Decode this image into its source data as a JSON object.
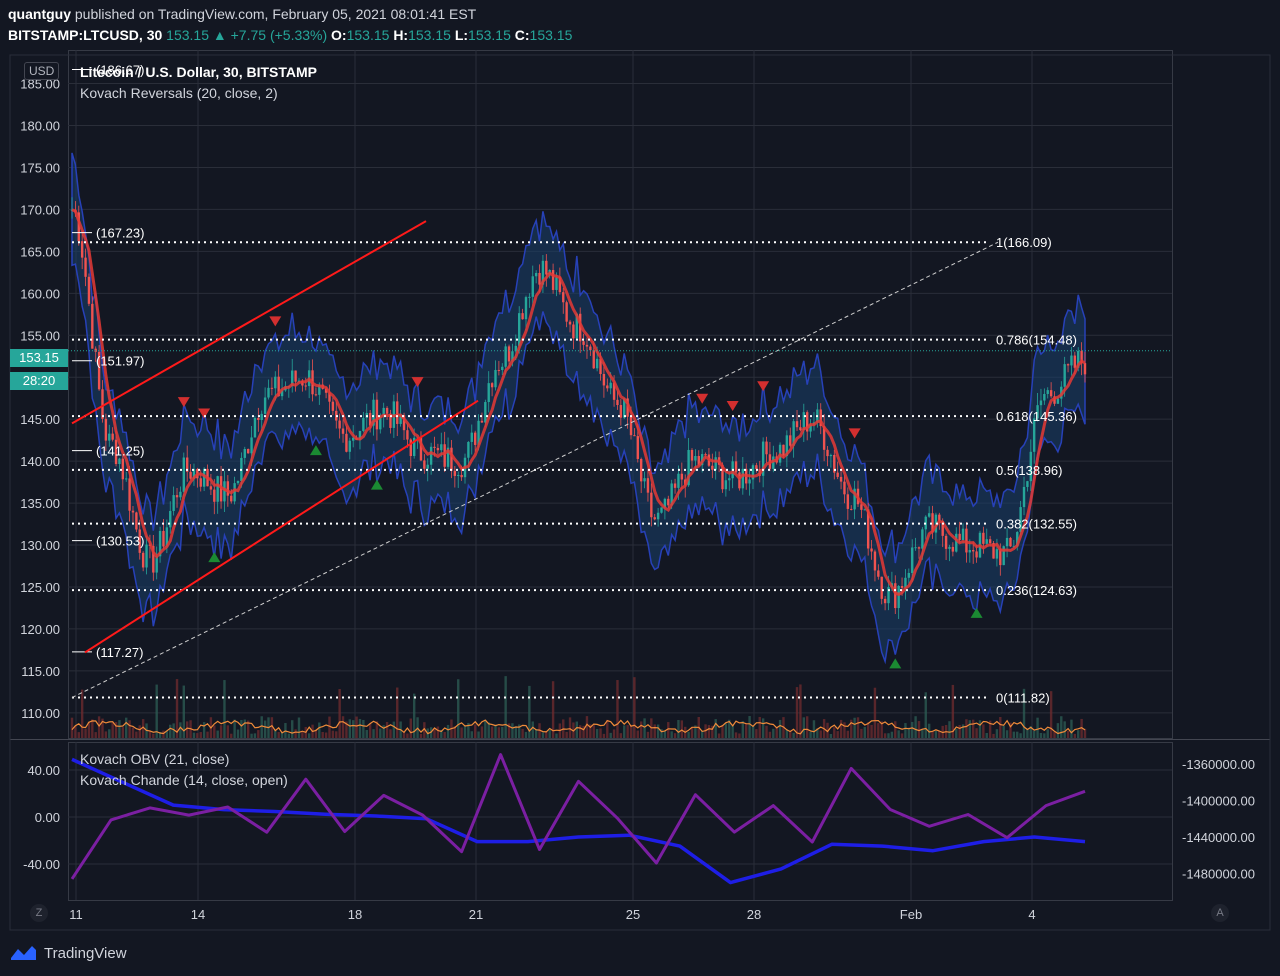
{
  "header": {
    "author": "quantguy",
    "published_text": "published on TradingView.com, February 05, 2021 08:01:41 EST",
    "symbol": "BITSTAMP:LTCUSD, 30",
    "last": "153.15",
    "change": "+7.75 (+5.33%)",
    "o_label": "O:",
    "o": "153.15",
    "h_label": "H:",
    "h": "153.15",
    "l_label": "L:",
    "l": "153.15",
    "c_label": "C:",
    "c": "153.15"
  },
  "main_pane": {
    "title": "Litecoin / U.S. Dollar, 30, BITSTAMP",
    "indicator": "Kovach Reversals (20, close, 2)",
    "currency_button": "USD",
    "price_badge": "153.15",
    "countdown_badge": "28:20"
  },
  "lower_pane": {
    "indicator1": "Kovach OBV (21, close)",
    "indicator2": "Kovach Chande (14, close, open)"
  },
  "footer": {
    "brand": "TradingView",
    "z_button": "Z",
    "a_button": "A"
  },
  "colors": {
    "background": "#131722",
    "grid": "#2a2e39",
    "candle_up": "#26a69a",
    "candle_down": "#ef5350",
    "channel": "#ff1a1a",
    "band": "#1c3a6e",
    "signal_up": "#1b8a32",
    "signal_down": "#d32f2f",
    "obv": "#1e1ee6",
    "chande": "#7b1fa2",
    "volume_ma": "#f08b3a",
    "fib": "#ffffff"
  },
  "chart_data": [
    {
      "type": "line",
      "title": "Litecoin / U.S. Dollar, 30, BITSTAMP",
      "y_ticks": [
        "185.00",
        "180.00",
        "175.00",
        "170.00",
        "165.00",
        "160.00",
        "155.00",
        "150.00",
        "145.00",
        "140.00",
        "135.00",
        "130.00",
        "125.00",
        "120.00",
        "115.00",
        "110.00"
      ],
      "ylim": [
        107,
        189
      ],
      "x_ticks": [
        "11",
        "14",
        "18",
        "21",
        "25",
        "28",
        "Feb",
        "4"
      ],
      "series": [
        {
          "name": "",
          "x": [
            0,
            1,
            2,
            3,
            4,
            5,
            6,
            7,
            8,
            9,
            10,
            11,
            12,
            13,
            14,
            15,
            16,
            17,
            18,
            19,
            20,
            21,
            22,
            23,
            24,
            25,
            26
          ],
          "values": [
            170,
            142,
            128,
            139,
            136,
            148,
            150,
            143,
            146,
            141,
            140,
            152,
            163,
            156,
            147,
            133,
            140,
            138,
            141,
            145,
            136,
            124,
            132,
            130,
            129,
            148,
            152
          ]
        }
      ],
      "fib_levels": [
        {
          "label": "1(166.09)",
          "value": 166.09
        },
        {
          "label": "0.786(154.48)",
          "value": 154.48
        },
        {
          "label": "0.618(145.36)",
          "value": 145.36
        },
        {
          "label": "0.5(138.96)",
          "value": 138.96
        },
        {
          "label": "0.382(132.55)",
          "value": 132.55
        },
        {
          "label": "0.236(124.63)",
          "value": 124.63
        },
        {
          "label": "0(111.82)",
          "value": 111.82
        }
      ],
      "price_marks": [
        {
          "label": "(186.67)",
          "value": 186.67
        },
        {
          "label": "(167.23)",
          "value": 167.23
        },
        {
          "label": "(151.97)",
          "value": 151.97
        },
        {
          "label": "(141.25)",
          "value": 141.25
        },
        {
          "label": "(130.53)",
          "value": 130.53
        },
        {
          "label": "(117.27)",
          "value": 117.27
        }
      ],
      "last_price": 153.15,
      "grid": true
    },
    {
      "type": "line",
      "title": "",
      "left_ticks": [
        "40.00",
        "0.00",
        "-40.00"
      ],
      "right_ticks": [
        "-1360000.00",
        "-1400000.00",
        "-1440000.00",
        "-1480000.00"
      ],
      "series": [
        {
          "name": "Kovach OBV (21, close)",
          "values": [
            -1355000,
            -1380000,
            -1405000,
            -1410000,
            -1412000,
            -1415000,
            -1417000,
            -1420000,
            -1445000,
            -1445000,
            -1440000,
            -1438000,
            -1450000,
            -1490000,
            -1475000,
            -1448000,
            -1450000,
            -1455000,
            -1445000,
            -1440000,
            -1445000
          ]
        },
        {
          "name": "Kovach Chande (14, close, open)",
          "values": [
            -50,
            0,
            10,
            0,
            10,
            -10,
            30,
            -15,
            20,
            0,
            -30,
            55,
            -30,
            30,
            0,
            -40,
            20,
            -10,
            10,
            -20,
            40,
            5,
            -10,
            0,
            -20,
            10,
            20
          ]
        }
      ]
    }
  ]
}
